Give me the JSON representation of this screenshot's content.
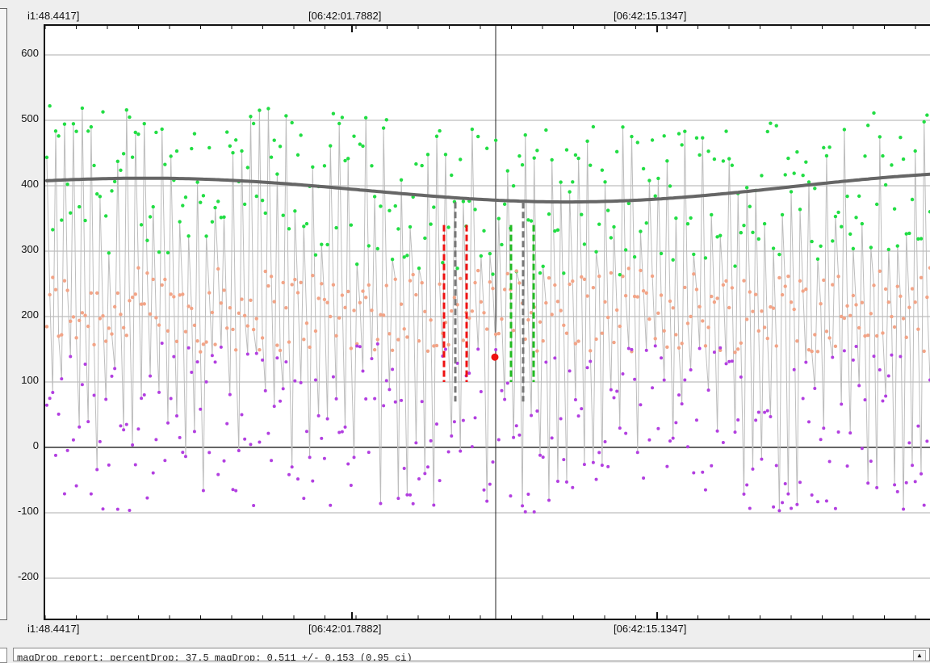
{
  "time_axis": {
    "top_labels": [
      "i1:48.4417]",
      "[06:42:01.7882]",
      "[06:42:15.1347]"
    ],
    "bottom_labels": [
      "i1:48.4417]",
      "[06:42:01.7882]",
      "[06:42:15.1347]"
    ]
  },
  "y_axis": {
    "ticks": [
      "600",
      "500",
      "400",
      "300",
      "200",
      "100",
      "0",
      "-100",
      "-200"
    ]
  },
  "report": {
    "text": "magDrop report: percentDrop: 37.5 magDrop: 0.511 +/- 0.153 (0.95 ci)"
  },
  "scroll_up_icon": "▲",
  "colors": {
    "green": "#22dd44",
    "salmon": "#f2a487",
    "purple": "#b23fe0",
    "blue": "#1d3fbf",
    "red": "#ee1111",
    "smooth_line": "#666666",
    "connector": "#bdbdbd"
  },
  "chart_data": {
    "type": "scatter",
    "ylim": [
      -260,
      650
    ],
    "series": [
      {
        "color": "green"
      },
      {
        "color": "salmon"
      },
      {
        "color": "purple"
      },
      {
        "color": "blue"
      }
    ],
    "highlight_point": {
      "y": 138
    }
  }
}
